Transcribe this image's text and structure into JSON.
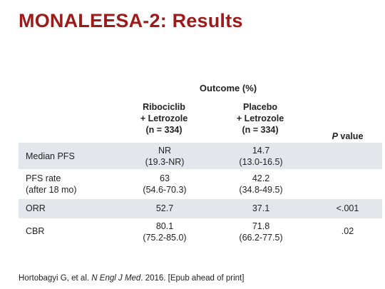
{
  "slide": {
    "title": "MONALEESA-2: Results"
  },
  "table": {
    "group_header": "Outcome (%)",
    "columns": [
      {
        "line1": "Ribociclib",
        "line2": "+ Letrozole",
        "line3": "(n = 334)"
      },
      {
        "line1": "Placebo",
        "line2": "+ Letrozole",
        "line3": "(n = 334)"
      }
    ],
    "pvalue_header": "P",
    "pvalue_header_rest": " value",
    "rows": [
      {
        "label1": "Median PFS",
        "label2": "",
        "ribo1": "NR",
        "ribo2": "(19.3-NR)",
        "placebo1": "14.7",
        "placebo2": "(13.0-16.5)",
        "p": ""
      },
      {
        "label1": "PFS rate",
        "label2": "(after 18 mo)",
        "ribo1": "63",
        "ribo2": "(54.6-70.3)",
        "placebo1": "42.2",
        "placebo2": "(34.8-49.5)",
        "p": ""
      },
      {
        "label1": "ORR",
        "label2": "",
        "ribo1": "52.7",
        "ribo2": "",
        "placebo1": "37.1",
        "placebo2": "",
        "p": "<.001"
      },
      {
        "label1": "CBR",
        "label2": "",
        "ribo1": "80.1",
        "ribo2": "(75.2-85.0)",
        "placebo1": "71.8",
        "placebo2": "(66.2-77.5)",
        "p": ".02"
      }
    ]
  },
  "citation": {
    "authors": "Hortobagyi G, et al. ",
    "journal": "N Engl J Med",
    "rest": ". 2016. [Epub ahead of print]"
  }
}
